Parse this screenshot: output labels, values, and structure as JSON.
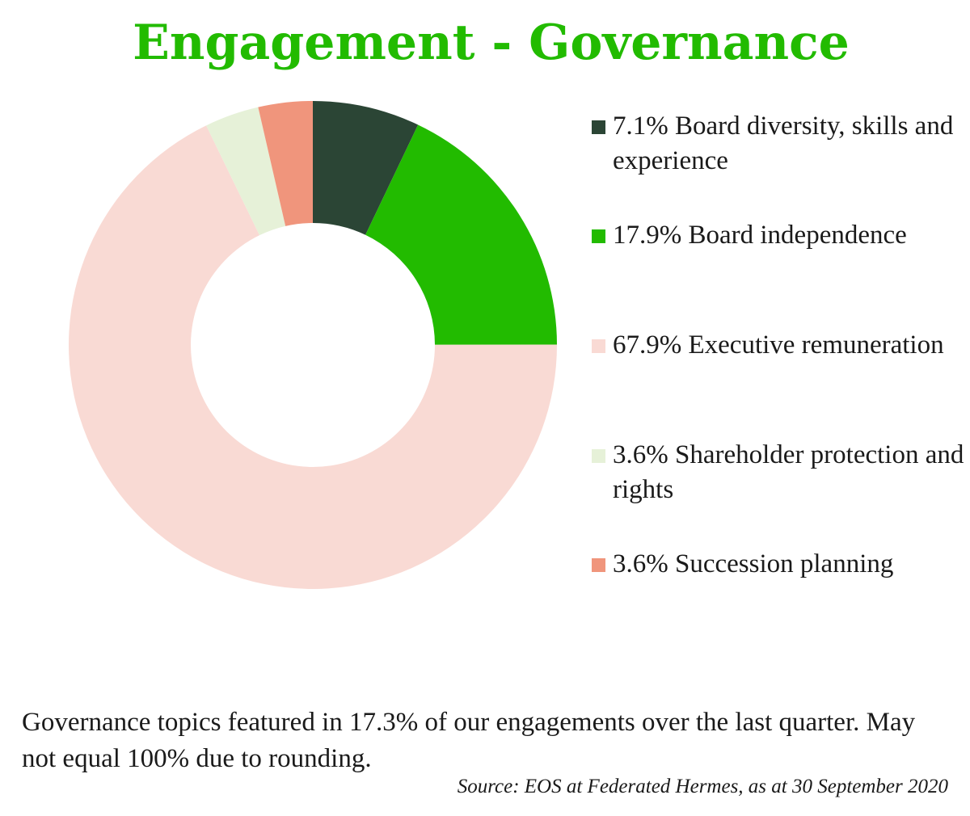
{
  "title": "Engagement - Governance",
  "chart_data": {
    "type": "pie",
    "style": "donut",
    "title": "Engagement - Governance",
    "categories": [
      "Board diversity, skills and experience",
      "Board independence",
      "Executive remuneration",
      "Shareholder protection and rights",
      "Succession planning"
    ],
    "values": [
      7.1,
      17.9,
      67.9,
      3.6,
      3.6
    ],
    "unit": "%",
    "colors": [
      "#2b4535",
      "#22bb00",
      "#f9dad4",
      "#e6f1d8",
      "#f0957c"
    ],
    "legend_placement": "right"
  },
  "legend": [
    {
      "text": "7.1% Board diversity, skills and experience",
      "color": "#2b4535"
    },
    {
      "text": "17.9% Board independence",
      "color": "#22bb00"
    },
    {
      "text": "67.9% Executive remuneration",
      "color": "#f9dad4"
    },
    {
      "text": "3.6% Shareholder protection and rights",
      "color": "#e6f1d8"
    },
    {
      "text": "3.6% Succession planning",
      "color": "#f0957c"
    }
  ],
  "note": "Governance topics featured in 17.3% of our engagements over the last quarter. May not equal 100% due to rounding.",
  "source": "Source: EOS at Federated Hermes, as at 30 September 2020"
}
